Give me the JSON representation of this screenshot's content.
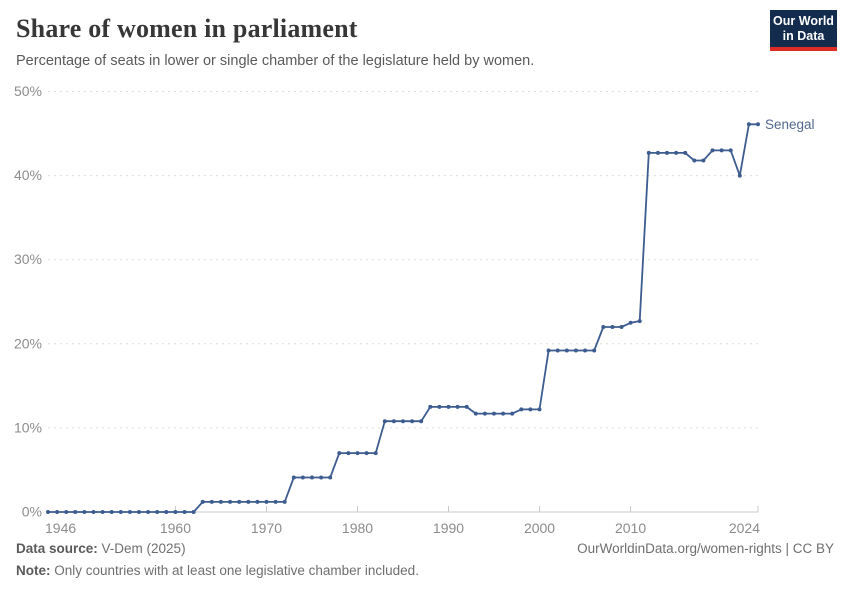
{
  "header": {
    "title": "Share of women in parliament",
    "subtitle": "Percentage of seats in lower or single chamber of the legislature held by women."
  },
  "logo": {
    "line1": "Our World",
    "line2": "in Data",
    "bg_color": "#132b4d",
    "bar_color": "#dc2c23"
  },
  "chart_data": {
    "type": "line",
    "title": "Share of women in parliament",
    "xlabel": "",
    "ylabel": "",
    "xlim": [
      1946,
      2024
    ],
    "ylim": [
      0,
      50
    ],
    "grid": "horizontal-dashed",
    "legend_position": "end-of-line-label",
    "yticks": [
      0,
      10,
      20,
      30,
      40,
      50
    ],
    "yticklabels": [
      "0%",
      "10%",
      "20%",
      "30%",
      "40%",
      "50%"
    ],
    "xticks": [
      1946,
      1960,
      1970,
      1980,
      1990,
      2000,
      2010,
      2024
    ],
    "xticklabels": [
      "1946",
      "1960",
      "1970",
      "1980",
      "1990",
      "2000",
      "2010",
      "2024"
    ],
    "series": [
      {
        "name": "Senegal",
        "color": "#3d5c8f",
        "x": [
          1946,
          1947,
          1948,
          1949,
          1950,
          1951,
          1952,
          1953,
          1954,
          1955,
          1956,
          1957,
          1958,
          1959,
          1960,
          1961,
          1962,
          1963,
          1964,
          1965,
          1966,
          1967,
          1968,
          1969,
          1970,
          1971,
          1972,
          1973,
          1974,
          1975,
          1976,
          1977,
          1978,
          1979,
          1980,
          1981,
          1982,
          1983,
          1984,
          1985,
          1986,
          1987,
          1988,
          1989,
          1990,
          1991,
          1992,
          1993,
          1994,
          1995,
          1996,
          1997,
          1998,
          1999,
          2000,
          2001,
          2002,
          2003,
          2004,
          2005,
          2006,
          2007,
          2008,
          2009,
          2010,
          2011,
          2012,
          2013,
          2014,
          2015,
          2016,
          2017,
          2018,
          2019,
          2020,
          2021,
          2022,
          2023,
          2024
        ],
        "values": [
          0,
          0,
          0,
          0,
          0,
          0,
          0,
          0,
          0,
          0,
          0,
          0,
          0,
          0,
          0,
          0,
          0,
          1.2,
          1.2,
          1.2,
          1.2,
          1.2,
          1.2,
          1.2,
          1.2,
          1.2,
          1.2,
          4.1,
          4.1,
          4.1,
          4.1,
          4.1,
          7,
          7,
          7,
          7,
          7,
          10.8,
          10.8,
          10.8,
          10.8,
          10.8,
          12.5,
          12.5,
          12.5,
          12.5,
          12.5,
          11.7,
          11.7,
          11.7,
          11.7,
          11.7,
          12.2,
          12.2,
          12.2,
          19.2,
          19.2,
          19.2,
          19.2,
          19.2,
          19.2,
          22,
          22,
          22,
          22.5,
          22.7,
          42.7,
          42.7,
          42.7,
          42.7,
          42.7,
          41.8,
          41.8,
          43,
          43,
          43,
          40,
          46.1,
          46.1
        ]
      }
    ],
    "end_label": "Senegal"
  },
  "footer": {
    "datasource_label": "Data source:",
    "datasource_value": " V-Dem (2025)",
    "note_label": "Note:",
    "note_value": " Only countries with at least one legislative chamber included.",
    "rights": "OurWorldinData.org/women-rights | CC BY"
  }
}
